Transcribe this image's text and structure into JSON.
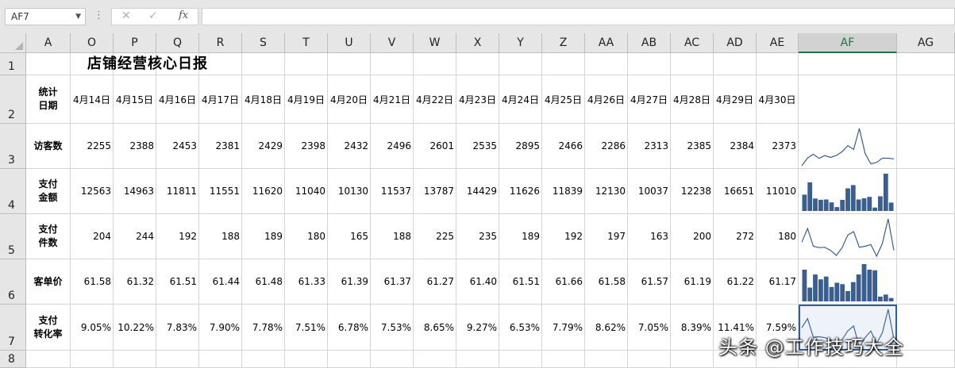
{
  "formula_bar": {
    "name_box": "AF7",
    "cancel_icon": "✕",
    "enter_icon": "✓",
    "fx_label": "fx",
    "formula_value": ""
  },
  "columns": [
    "A",
    "O",
    "P",
    "Q",
    "R",
    "S",
    "T",
    "U",
    "V",
    "W",
    "X",
    "Y",
    "Z",
    "AA",
    "AB",
    "AC",
    "AD",
    "AE",
    "AF",
    "AG"
  ],
  "selected_column": "AF",
  "rows": [
    "1",
    "2",
    "3",
    "4",
    "5",
    "6",
    "7",
    "8"
  ],
  "sheet_title": "店铺经营核心日报",
  "header_label": "统计\n日期",
  "dates": [
    "4月14日",
    "4月15日",
    "4月16日",
    "4月17日",
    "4月18日",
    "4月19日",
    "4月20日",
    "4月21日",
    "4月22日",
    "4月23日",
    "4月24日",
    "4月25日",
    "4月26日",
    "4月27日",
    "4月28日",
    "4月29日",
    "4月30日"
  ],
  "metrics": [
    {
      "label": "访客数",
      "values": [
        "2255",
        "2388",
        "2453",
        "2381",
        "2429",
        "2398",
        "2432",
        "2496",
        "2601",
        "2535",
        "2895",
        "2466",
        "2286",
        "2313",
        "2385",
        "2384",
        "2373"
      ]
    },
    {
      "label": "支付\n金额",
      "values": [
        "12563",
        "14963",
        "11811",
        "11551",
        "11620",
        "11040",
        "10130",
        "11537",
        "13787",
        "14429",
        "11626",
        "11839",
        "12130",
        "10037",
        "12238",
        "16651",
        "11010"
      ]
    },
    {
      "label": "支付\n件数",
      "values": [
        "204",
        "244",
        "192",
        "188",
        "189",
        "180",
        "165",
        "188",
        "225",
        "235",
        "189",
        "192",
        "197",
        "163",
        "200",
        "272",
        "180"
      ]
    },
    {
      "label": "客单价",
      "values": [
        "61.58",
        "61.32",
        "61.51",
        "61.44",
        "61.48",
        "61.33",
        "61.39",
        "61.37",
        "61.27",
        "61.40",
        "61.51",
        "61.66",
        "61.58",
        "61.57",
        "61.19",
        "61.22",
        "61.17"
      ]
    },
    {
      "label": "支付\n转化率",
      "values": [
        "9.05%",
        "10.22%",
        "7.83%",
        "7.90%",
        "7.78%",
        "7.51%",
        "6.78%",
        "7.53%",
        "8.65%",
        "9.27%",
        "6.53%",
        "7.79%",
        "8.62%",
        "7.05%",
        "8.39%",
        "11.41%",
        "7.59%"
      ]
    }
  ],
  "sparklines": {
    "color": "#3a5f8f",
    "note_series": [
      {
        "type": "line",
        "values": [
          2255,
          2388,
          2453,
          2381,
          2429,
          2398,
          2432,
          2496,
          2601,
          2535,
          2895,
          2466,
          2286,
          2313,
          2385,
          2384,
          2373
        ]
      },
      {
        "type": "column",
        "values": [
          12563,
          14963,
          11811,
          11551,
          11620,
          11040,
          10130,
          11537,
          13787,
          14429,
          11626,
          11839,
          12130,
          10037,
          12238,
          16651,
          11010
        ]
      },
      {
        "type": "line",
        "values": [
          204,
          244,
          192,
          188,
          189,
          180,
          165,
          188,
          225,
          235,
          189,
          192,
          197,
          163,
          200,
          272,
          180
        ]
      },
      {
        "type": "column",
        "values": [
          61.58,
          61.32,
          61.51,
          61.44,
          61.48,
          61.33,
          61.39,
          61.37,
          61.27,
          61.4,
          61.51,
          61.66,
          61.58,
          61.57,
          61.19,
          61.22,
          61.17
        ]
      },
      {
        "type": "line",
        "values": [
          9.05,
          10.22,
          7.83,
          7.9,
          7.78,
          7.51,
          6.78,
          7.53,
          8.65,
          9.27,
          6.53,
          7.79,
          8.62,
          7.05,
          8.39,
          11.41,
          7.59
        ]
      }
    ]
  },
  "watermark": "头条 @工作技巧大全"
}
